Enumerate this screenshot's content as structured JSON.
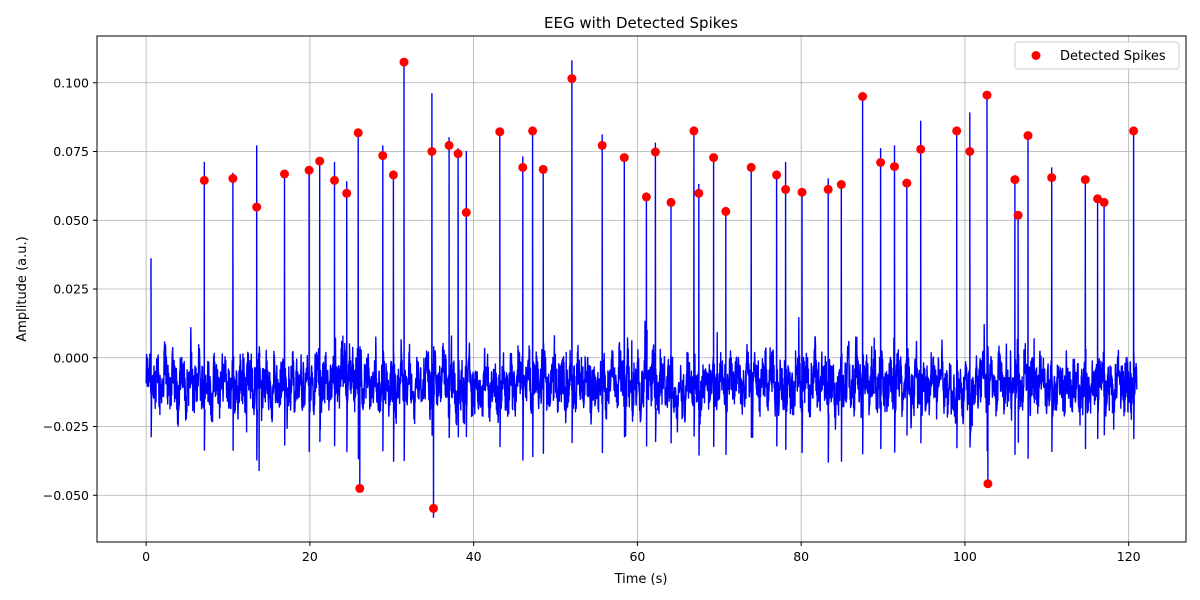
{
  "chart_data": {
    "type": "line",
    "title": "EEG with Detected Spikes",
    "xlabel": "Time (s)",
    "ylabel": "Amplitude (a.u.)",
    "xlim": [
      -6,
      127
    ],
    "ylim": [
      -0.067,
      0.117
    ],
    "xticks": [
      0,
      20,
      40,
      60,
      80,
      100,
      120
    ],
    "xtick_labels": [
      "0",
      "20",
      "40",
      "60",
      "80",
      "100",
      "120"
    ],
    "yticks": [
      -0.05,
      -0.025,
      0.0,
      0.025,
      0.05,
      0.075,
      0.1
    ],
    "ytick_labels": [
      "−0.050",
      "−0.025",
      "0.000",
      "0.025",
      "0.050",
      "0.075",
      "0.100"
    ],
    "grid": true,
    "legend_position": "top-right",
    "colors": {
      "signal": "#0000ff",
      "spikes": "#ff0000"
    },
    "signal": {
      "name": "",
      "t_range": [
        0,
        121
      ],
      "baseline_range": [
        -0.025,
        0.01
      ],
      "spikes": [
        [
          0.6,
          0.036
        ],
        [
          7.1,
          0.071
        ],
        [
          10.6,
          0.067
        ],
        [
          13.5,
          0.077
        ],
        [
          16.9,
          0.067
        ],
        [
          19.9,
          0.069
        ],
        [
          21.2,
          0.072
        ],
        [
          23.0,
          0.071
        ],
        [
          24.5,
          0.064
        ],
        [
          25.9,
          0.082
        ],
        [
          28.9,
          0.077
        ],
        [
          30.2,
          0.067
        ],
        [
          31.5,
          0.108
        ],
        [
          34.9,
          0.096
        ],
        [
          37.0,
          0.08
        ],
        [
          38.1,
          0.076
        ],
        [
          39.1,
          0.075
        ],
        [
          43.2,
          0.082
        ],
        [
          46.0,
          0.073
        ],
        [
          47.2,
          0.083
        ],
        [
          48.5,
          0.069
        ],
        [
          52.0,
          0.108
        ],
        [
          55.7,
          0.081
        ],
        [
          58.4,
          0.073
        ],
        [
          61.1,
          0.059
        ],
        [
          62.2,
          0.078
        ],
        [
          64.1,
          0.057
        ],
        [
          66.9,
          0.083
        ],
        [
          67.5,
          0.063
        ],
        [
          69.3,
          0.073
        ],
        [
          70.8,
          0.053
        ],
        [
          73.9,
          0.07
        ],
        [
          77.0,
          0.067
        ],
        [
          78.1,
          0.071
        ],
        [
          80.1,
          0.06
        ],
        [
          83.3,
          0.065
        ],
        [
          84.9,
          0.063
        ],
        [
          87.5,
          0.096
        ],
        [
          89.7,
          0.076
        ],
        [
          91.4,
          0.077
        ],
        [
          92.9,
          0.064
        ],
        [
          94.6,
          0.086
        ],
        [
          99.0,
          0.083
        ],
        [
          100.6,
          0.089
        ],
        [
          102.7,
          0.096
        ],
        [
          106.1,
          0.065
        ],
        [
          106.5,
          0.052
        ],
        [
          107.7,
          0.081
        ],
        [
          110.6,
          0.069
        ],
        [
          114.7,
          0.065
        ],
        [
          116.2,
          0.058
        ],
        [
          117.0,
          0.056
        ],
        [
          120.6,
          0.083
        ]
      ],
      "negative_spikes": [
        [
          13.8,
          -0.041
        ],
        [
          26.1,
          -0.046
        ],
        [
          35.1,
          -0.058
        ],
        [
          102.8,
          -0.046
        ]
      ]
    },
    "series": [
      {
        "name": "Detected Spikes",
        "type": "scatter",
        "x": [
          7.1,
          10.6,
          13.5,
          16.9,
          19.9,
          21.2,
          23.0,
          24.5,
          25.9,
          26.1,
          28.9,
          30.2,
          31.5,
          34.9,
          35.1,
          37.0,
          38.1,
          39.1,
          43.2,
          46.0,
          47.2,
          48.5,
          52.0,
          55.7,
          58.4,
          61.1,
          62.2,
          64.1,
          66.9,
          67.5,
          69.3,
          70.8,
          73.9,
          77.0,
          78.1,
          80.1,
          83.3,
          84.9,
          87.5,
          89.7,
          91.4,
          92.9,
          94.6,
          99.0,
          100.6,
          102.7,
          102.8,
          106.1,
          106.5,
          107.7,
          110.6,
          114.7,
          116.2,
          117.0,
          120.6
        ],
        "y": [
          0.0645,
          0.0652,
          0.0548,
          0.0668,
          0.0682,
          0.0715,
          0.0645,
          0.0598,
          0.0818,
          -0.0475,
          0.0735,
          0.0665,
          0.1075,
          0.075,
          -0.0548,
          0.0772,
          0.0742,
          0.0528,
          0.0822,
          0.0692,
          0.0825,
          0.0685,
          0.1015,
          0.0772,
          0.0728,
          0.0585,
          0.0748,
          0.0565,
          0.0825,
          0.0598,
          0.0728,
          0.0532,
          0.0692,
          0.0665,
          0.0612,
          0.0602,
          0.0612,
          0.063,
          0.095,
          0.071,
          0.0695,
          0.0635,
          0.0758,
          0.0825,
          0.075,
          0.0955,
          -0.0458,
          0.0648,
          0.0518,
          0.0808,
          0.0655,
          0.0648,
          0.0578,
          0.0565,
          0.0825
        ]
      }
    ]
  }
}
